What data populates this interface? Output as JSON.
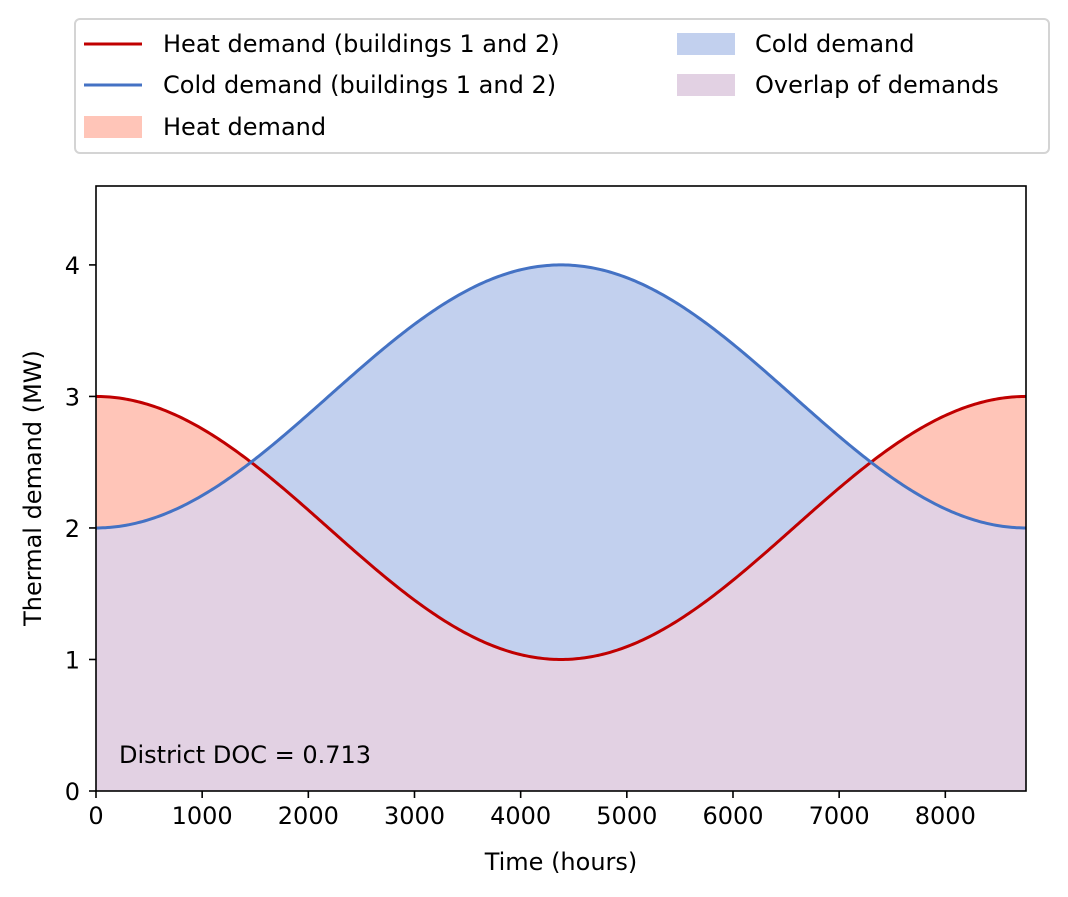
{
  "chart_data": {
    "type": "area",
    "title": "",
    "xlabel": "Time (hours)",
    "ylabel": "Thermal demand (MW)",
    "xlim": [
      0,
      8760
    ],
    "ylim": [
      0,
      4.6
    ],
    "xticks": [
      0,
      1000,
      2000,
      3000,
      4000,
      5000,
      6000,
      7000,
      8000
    ],
    "yticks": [
      0,
      1,
      2,
      3,
      4
    ],
    "grid": false,
    "legend_position": "top",
    "series": [
      {
        "name": "Heat demand (buildings 1 and 2)",
        "kind": "line",
        "color": "#c00000",
        "function": "2 + cos(2*pi*t/8760)",
        "x": [
          0,
          1000,
          1460,
          2000,
          3000,
          4000,
          4380,
          5000,
          6000,
          7000,
          7300,
          8000,
          8760
        ],
        "values": [
          3.0,
          2.75,
          2.5,
          2.12,
          1.42,
          1.03,
          1.0,
          1.09,
          1.5,
          2.21,
          2.5,
          2.86,
          3.0
        ]
      },
      {
        "name": "Cold demand (buildings 1 and 2)",
        "kind": "line",
        "color": "#4472c4",
        "function": "3 - cos(2*pi*t/8760)",
        "x": [
          0,
          1000,
          1460,
          2000,
          3000,
          4000,
          4380,
          5000,
          6000,
          7000,
          7300,
          8000,
          8760
        ],
        "values": [
          2.0,
          2.25,
          2.5,
          2.88,
          3.58,
          3.97,
          4.0,
          3.91,
          3.5,
          2.79,
          2.5,
          2.14,
          2.0
        ]
      },
      {
        "name": "Heat demand",
        "kind": "fill",
        "color": "#ffc5b8"
      },
      {
        "name": "Cold demand",
        "kind": "fill",
        "color": "#c2d0ee"
      },
      {
        "name": "Overlap of demands",
        "kind": "fill",
        "color": "#e2d1e3"
      }
    ],
    "annotation": "District DOC = 0.713"
  }
}
